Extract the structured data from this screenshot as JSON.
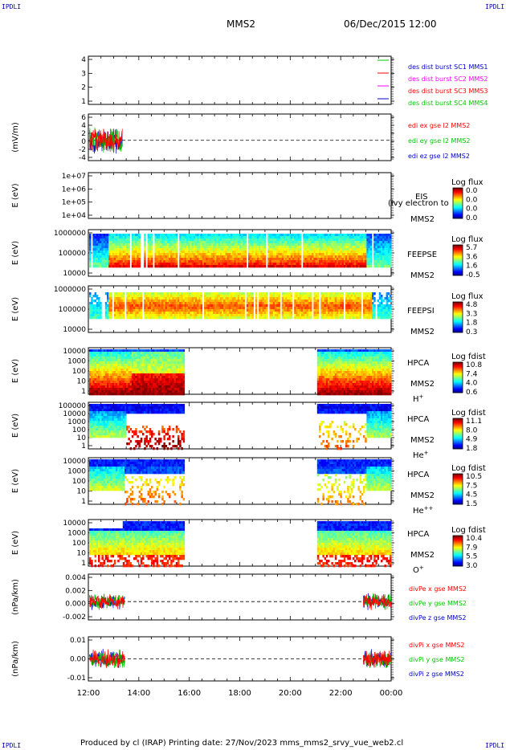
{
  "corner_label": "IPDLI",
  "header": {
    "spacecraft": "MMS2",
    "date": "06/Dec/2015 12:00"
  },
  "footer": "Produced by cl (IRAP)   Printing date: 27/Nov/2023   mms_mms2_srvy_vue_web2.cl",
  "x_axis": {
    "ticks": [
      "12:00",
      "14:00",
      "16:00",
      "18:00",
      "20:00",
      "22:00",
      "00:00"
    ]
  },
  "colors": {
    "red": "#ff0000",
    "green": "#00c800",
    "blue": "#0000cc",
    "magenta": "#ff00ff"
  },
  "chart_data": [
    {
      "type": "line",
      "panel": "burst",
      "y_ticks": [
        "1",
        "2",
        "3",
        "4"
      ],
      "ylim": [
        1,
        4
      ],
      "legend": [
        {
          "label": "des dist burst SC1 MMS1",
          "color": "#0000cc"
        },
        {
          "label": "des dist burst SC2 MMS2",
          "color": "#ff00ff"
        },
        {
          "label": "des dist burst SC3 MMS3",
          "color": "#ff0000"
        },
        {
          "label": "des dist burst SC4 MMS4",
          "color": "#00c800"
        }
      ]
    },
    {
      "type": "line",
      "panel": "edi",
      "ylabel": "(mV/m)",
      "y_ticks": [
        "6",
        "4",
        "2",
        "0",
        "-2",
        "-4"
      ],
      "ylim": [
        -5,
        6.5
      ],
      "active_x_hours": [
        12.05,
        13.35
      ],
      "legend": [
        {
          "label": "edi ex gse l2 MMS2",
          "color": "#ff0000"
        },
        {
          "label": "edi ey gse l2 MMS2",
          "color": "#00c800"
        },
        {
          "label": "edi ez gse l2 MMS2",
          "color": "#0000cc"
        }
      ]
    },
    {
      "type": "heatmap",
      "panel": "eis",
      "ylabel": "E (eV)",
      "y_ticks": [
        "1e+07",
        "1e+06",
        "1e+05",
        "1e+04"
      ],
      "instrument": "EIS",
      "sc": "MMS2",
      "overlay_text": "(ivy electron to",
      "colorbar": {
        "label": "Log flux",
        "ticks": [
          "0.0",
          "0.0",
          "0.0",
          "0.0"
        ]
      }
    },
    {
      "type": "heatmap",
      "panel": "feepse",
      "ylabel": "E (eV)",
      "y_ticks": [
        "1000000",
        "100000",
        "10000"
      ],
      "instrument": "FEEPSE",
      "sc": "MMS2",
      "colorbar": {
        "label": "Log flux",
        "ticks": [
          "5.7",
          "3.6",
          "1.6",
          "-0.5"
        ]
      }
    },
    {
      "type": "heatmap",
      "panel": "feepsi",
      "ylabel": "E (eV)",
      "y_ticks": [
        "1000000",
        "100000",
        "10000"
      ],
      "instrument": "FEEPSI",
      "sc": "MMS2",
      "colorbar": {
        "label": "Log flux",
        "ticks": [
          "4.8",
          "3.3",
          "1.8",
          "0.3"
        ]
      }
    },
    {
      "type": "heatmap",
      "panel": "hpca-h",
      "ylabel": "E (eV)",
      "y_ticks": [
        "10000",
        "1000",
        "100",
        "10",
        "1"
      ],
      "instrument": "HPCA",
      "sc": "MMS2",
      "species": "H",
      "charge": "+",
      "colorbar": {
        "label": "Log fdist",
        "ticks": [
          "10.8",
          "7.4",
          "4.0",
          "0.6"
        ]
      }
    },
    {
      "type": "heatmap",
      "panel": "hpca-he",
      "ylabel": "E (eV)",
      "y_ticks": [
        "100000",
        "10000",
        "1000",
        "100",
        "10",
        "1"
      ],
      "instrument": "HPCA",
      "sc": "MMS2",
      "species": "He",
      "charge": "+",
      "colorbar": {
        "label": "Log fdist",
        "ticks": [
          "11.1",
          "8.0",
          "4.9",
          "1.8"
        ]
      }
    },
    {
      "type": "heatmap",
      "panel": "hpca-hepp",
      "ylabel": "E (eV)",
      "y_ticks": [
        "10000",
        "1000",
        "100",
        "10",
        "1"
      ],
      "instrument": "HPCA",
      "sc": "MMS2",
      "species": "He",
      "charge": "++",
      "colorbar": {
        "label": "Log fdist",
        "ticks": [
          "10.5",
          "7.5",
          "4.5",
          "1.5"
        ]
      }
    },
    {
      "type": "heatmap",
      "panel": "hpca-o",
      "ylabel": "E (eV)",
      "y_ticks": [
        "10000",
        "1000",
        "100",
        "10",
        "1"
      ],
      "instrument": "HPCA",
      "sc": "MMS2",
      "species": "O",
      "charge": "+",
      "colorbar": {
        "label": "Log fdist",
        "ticks": [
          "10.4",
          "7.9",
          "5.5",
          "3.0"
        ]
      }
    },
    {
      "type": "line",
      "panel": "divpe",
      "ylabel": "(nPa/km)",
      "y_ticks": [
        "0.004",
        "0.002",
        "0.000",
        "-0.002"
      ],
      "ylim": [
        -0.0028,
        0.0042
      ],
      "active_x_hours": [
        [
          12.05,
          13.45
        ],
        [
          22.9,
          24.0
        ]
      ],
      "legend": [
        {
          "label": "divPe x gse MMS2",
          "color": "#ff0000"
        },
        {
          "label": "divPe y gse MMS2",
          "color": "#00c800"
        },
        {
          "label": "divPe z gse MMS2",
          "color": "#0000cc"
        }
      ]
    },
    {
      "type": "line",
      "panel": "divpi",
      "ylabel": "(nPa/km)",
      "y_ticks": [
        "0.01",
        "0.00",
        "-0.01"
      ],
      "ylim": [
        -0.015,
        0.015
      ],
      "active_x_hours": [
        [
          12.05,
          13.45
        ],
        [
          22.9,
          24.0
        ]
      ],
      "legend": [
        {
          "label": "divPi x gse MMS2",
          "color": "#ff0000"
        },
        {
          "label": "divPi y gse MMS2",
          "color": "#00c800"
        },
        {
          "label": "divPi z gse MMS2",
          "color": "#0000cc"
        }
      ]
    }
  ]
}
